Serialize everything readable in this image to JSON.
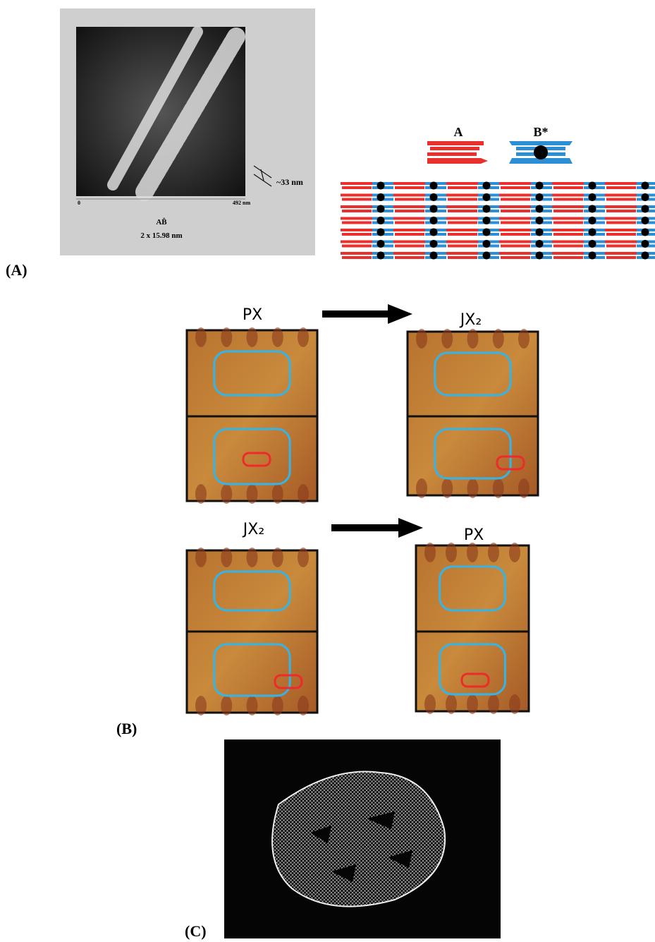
{
  "panel_a": {
    "label": "(A)",
    "scale_start": "0",
    "scale_end": "492 nm",
    "spacing": "~33 nm",
    "repeat_symbol": "AB̂",
    "repeat_size": "2 x 15.98 nm",
    "tile_a": "A",
    "tile_b": "B*"
  },
  "panel_b": {
    "label": "(B)",
    "top_left_title": "PX",
    "top_right_title": "JX₂",
    "bottom_left_title": "JX₂",
    "bottom_right_title": "PX"
  },
  "panel_c": {
    "label": "(C)"
  }
}
